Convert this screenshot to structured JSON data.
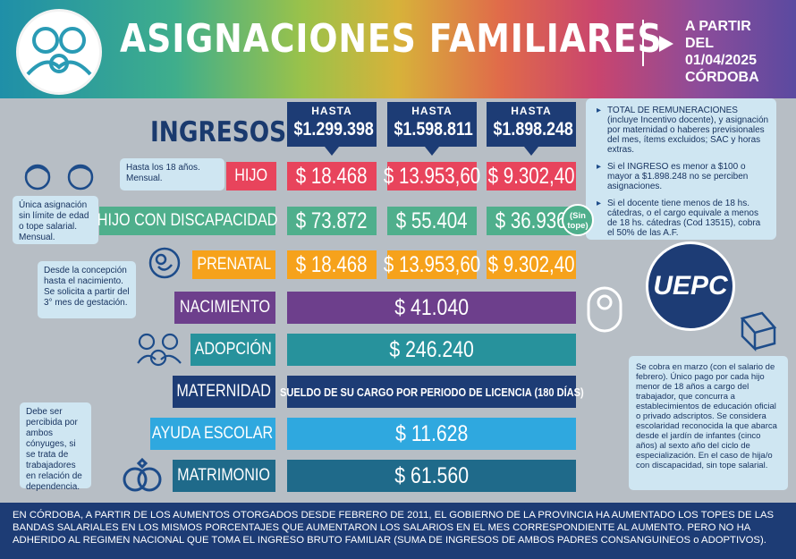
{
  "header": {
    "title": "ASIGNACIONES FAMILIARES",
    "date_line1": "A PARTIR DEL",
    "date_line2": "01/04/2025",
    "date_line3": "CÓRDOBA"
  },
  "ingresos_label": "INGRESOS:",
  "columns": [
    {
      "label": "HASTA",
      "value": "$1.299.398"
    },
    {
      "label": "HASTA",
      "value": "$1.598.811"
    },
    {
      "label": "HASTA",
      "value": "$1.898.248"
    }
  ],
  "rows": {
    "hijo": {
      "label": "HIJO",
      "values": [
        "$ 18.468",
        "$ 13.953,60",
        "$ 9.302,40"
      ]
    },
    "discapacidad": {
      "label": "HIJO CON DISCAPACIDAD",
      "values": [
        "$ 73.872",
        "$ 55.404",
        "$ 36.936"
      ],
      "badge": "(Sin tope)"
    },
    "prenatal": {
      "label": "PRENATAL",
      "values": [
        "$ 18.468",
        "$ 13.953,60",
        "$ 9.302,40"
      ]
    },
    "nacimiento": {
      "label": "NACIMIENTO",
      "value": "$ 41.040"
    },
    "adopcion": {
      "label": "ADOPCIÓN",
      "value": "$ 246.240"
    },
    "maternidad": {
      "label": "MATERNIDAD",
      "value": "SUELDO DE SU CARGO POR PERIODO DE LICENCIA (180 DÍAS)"
    },
    "escolar": {
      "label": "AYUDA ESCOLAR",
      "value": "$ 11.628"
    },
    "matrimonio": {
      "label": "MATRIMONIO",
      "value": "$ 61.560"
    }
  },
  "notes": {
    "hijo": "Hasta los 18 años. Mensual.",
    "discapacidad": "Única asignación sin límite de edad o tope salarial. Mensual.",
    "prenatal": "Desde la concepción hasta el nacimiento. Se solicita a partir del 3° mes de gestación.",
    "matrimonio": "Debe ser percibida por ambos cónyuges, si se trata de trabajadores en relación de dependencia.",
    "right1": "TOTAL DE REMUNERACIONES (incluye Incentivo docente), y asignación por maternidad o haberes previsionales del mes, ítems excluidos; SAC y horas extras.",
    "right2": "Si el INGRESO es menor a $100 o mayor a $1.898.248 no se perciben asignaciones.",
    "right3": "Si el docente tiene menos de 18 hs. cátedras, o el cargo equivale a menos de 18 hs. cátedras (Cod 13515), cobra el 50% de las A.F.",
    "escolar": "Se cobra en marzo (con el salario de febrero). Único pago por cada hijo menor de 18 años a cargo del trabajador, que concurra a establecimientos de educación oficial o privado adscriptos. Se considera escolaridad reconocida la que abarca desde el jardín de infantes (cinco años) al sexto año del ciclo de especialización. En el caso de hija/o con discapacidad, sin tope salarial."
  },
  "logo": "UEPC",
  "footer": "EN CÓRDOBA, A PARTIR DE LOS AUMENTOS OTORGADOS DESDE FEBRERO DE 2011, EL GOBIERNO DE LA PROVINCIA HA AUMENTADO LOS TOPES DE LAS BANDAS SALARIALES EN LOS MISMOS PORCENTAJES QUE AUMENTARON LOS SALARIOS EN EL MES CORRESPONDIENTE AL AUMENTO.  PERO NO HA ADHERIDO AL REGIMEN NACIONAL QUE TOMA EL INGRESO BRUTO FAMILIAR (SUMA DE INGRESOS DE AMBOS PADRES CONSANGUINEOS o ADOPTIVOS).",
  "colors": {
    "hijo": "#e8445c",
    "discapacidad": "#4faf8c",
    "prenatal": "#f6a21b",
    "nacimiento": "#6d3f8c",
    "adopcion": "#27929c",
    "maternidad": "#1d3c75",
    "escolar": "#2fa8df",
    "matrimonio": "#1f6a8a"
  },
  "icons": [
    "family-icon",
    "children-faces-icon",
    "fetus-icon",
    "baby-icon",
    "adoption-family-icon",
    "book-icon",
    "wedding-rings-icon"
  ]
}
